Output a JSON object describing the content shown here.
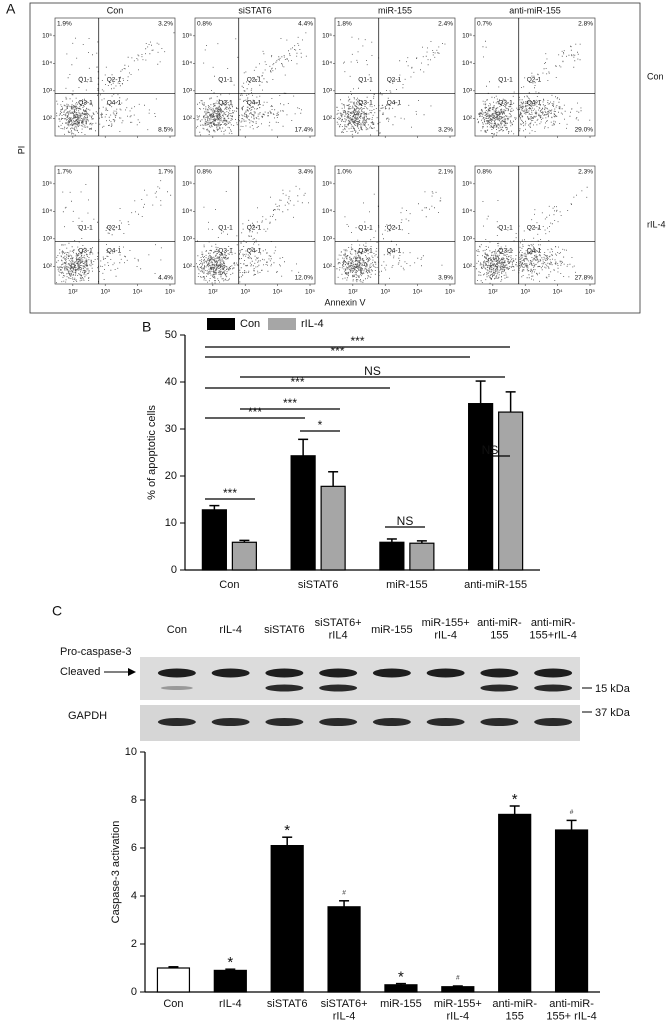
{
  "chart_data": [
    {
      "type": "flow",
      "panel": "A",
      "x_label": "Annexin V",
      "y_label": "PI",
      "columns": [
        "Con",
        "siSTAT6",
        "miR-155",
        "anti-miR-155"
      ],
      "rows": [
        "Con",
        "rIL-4"
      ],
      "ticks": [
        {
          "value": 2,
          "label": "10²"
        },
        {
          "value": 3,
          "label": "10³"
        },
        {
          "value": 4,
          "label": "10⁴"
        },
        {
          "value": 5,
          "label": "10⁵"
        }
      ],
      "quadrant_labels": [
        "Q1-1",
        "Q2-1",
        "Q3-1",
        "Q4-1"
      ],
      "values": [
        [
          [
            1.9,
            3.2,
            8.5
          ],
          [
            0.8,
            4.4,
            17.4
          ],
          [
            1.8,
            2.4,
            3.2
          ],
          [
            0.7,
            2.8,
            29.0
          ]
        ],
        [
          [
            1.7,
            1.7,
            4.4
          ],
          [
            0.8,
            3.4,
            12.0
          ],
          [
            1.0,
            2.1,
            3.9
          ],
          [
            0.8,
            2.3,
            27.8
          ]
        ]
      ],
      "value_labels": [
        [
          [
            "1.9%",
            "3.2%",
            "8.5%"
          ],
          [
            "0.8%",
            "4.4%",
            "17.4%"
          ],
          [
            "1.8%",
            "2.4%",
            "3.2%"
          ],
          [
            "0.7%",
            "2.8%",
            "29.0%"
          ]
        ],
        [
          [
            "1.7%",
            "1.7%",
            "4.4%"
          ],
          [
            "0.8%",
            "3.4%",
            "12.0%"
          ],
          [
            "1.0%",
            "2.1%",
            "3.9%"
          ],
          [
            "0.8%",
            "2.3%",
            "27.8%"
          ]
        ]
      ]
    },
    {
      "type": "bar",
      "panel": "B",
      "y_label": "% of apoptotic cells",
      "categories": [
        "Con",
        "siSTAT6",
        "miR-155",
        "anti-miR-155"
      ],
      "series": [
        {
          "name": "Con",
          "color": "#000000",
          "values": [
            12.8,
            24.3,
            5.9,
            35.4
          ],
          "errors": [
            0.9,
            3.5,
            0.7,
            4.8
          ]
        },
        {
          "name": "rIL-4",
          "color": "#a6a6a6",
          "values": [
            5.9,
            17.8,
            5.7,
            33.6
          ],
          "errors": [
            0.4,
            3.1,
            0.5,
            4.3
          ]
        }
      ],
      "ylim": [
        0,
        50
      ],
      "yticks": [
        0,
        10,
        20,
        30,
        40,
        50
      ],
      "annotations": [
        "***",
        "***",
        "NS",
        "***",
        "***",
        "***",
        "*",
        "***",
        "NS",
        "NS"
      ]
    },
    {
      "type": "bar",
      "panel": "C",
      "y_label": "Caspase-3 activation",
      "blot": {
        "lanes": [
          "Con",
          "rIL-4",
          "siSTAT6",
          "siSTAT6+\nrIL4",
          "miR-155",
          "miR-155+\nrIL-4",
          "anti-miR-\n155",
          "anti-miR-\n155+rIL-4"
        ],
        "bands": [
          "Pro-caspase-3",
          "Cleaved",
          "GAPDH"
        ],
        "sizes": [
          "15 kDa",
          "37 kDa"
        ]
      },
      "categories": [
        "Con",
        "rIL-4",
        "siSTAT6",
        "siSTAT6+\nrIL-4",
        "miR-155",
        "miR-155+\nrIL-4",
        "anti-miR-\n155",
        "anti-miR-\n155+ rIL-4"
      ],
      "values": [
        1.0,
        0.9,
        6.1,
        3.55,
        0.3,
        0.22,
        7.4,
        6.75
      ],
      "errors": [
        0.05,
        0.05,
        0.35,
        0.25,
        0.05,
        0.03,
        0.35,
        0.4
      ],
      "colors": [
        "#ffffff",
        "#000000",
        "#000000",
        "#000000",
        "#000000",
        "#000000",
        "#000000",
        "#000000"
      ],
      "markers": [
        null,
        "*",
        "*",
        "#",
        "*",
        "#",
        "*",
        "#"
      ],
      "ylim": [
        0,
        10
      ],
      "yticks": [
        0,
        2,
        4,
        6,
        8,
        10
      ]
    }
  ]
}
